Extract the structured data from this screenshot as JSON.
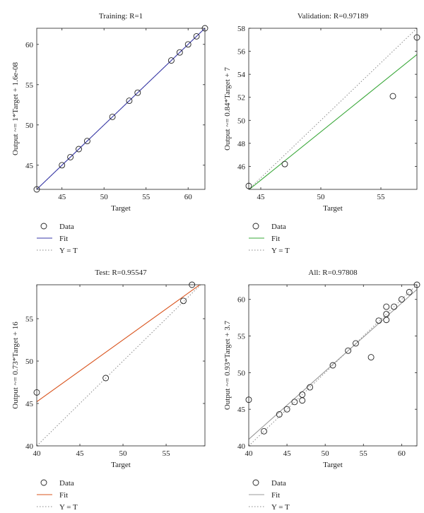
{
  "panels": [
    {
      "title": "Training: R=1",
      "xlabel": "Target",
      "ylabel": "Output ~= 1*Target + 1.6e-08",
      "fit_color": "#3a3aa8",
      "legend": {
        "data": "Data",
        "fit": "Fit",
        "yt": "Y = T"
      }
    },
    {
      "title": "Validation: R=0.97189",
      "xlabel": "Target",
      "ylabel": "Output ~= 0.84*Target + 7",
      "fit_color": "#3aa83a",
      "legend": {
        "data": "Data",
        "fit": "Fit",
        "yt": "Y = T"
      }
    },
    {
      "title": "Test: R=0.95547",
      "xlabel": "Target",
      "ylabel": "Output ~= 0.73*Target + 16",
      "fit_color": "#d9541e",
      "legend": {
        "data": "Data",
        "fit": "Fit",
        "yt": "Y = T"
      }
    },
    {
      "title": "All: R=0.97808",
      "xlabel": "Target",
      "ylabel": "Output ~= 0.93*Target + 3.7",
      "fit_color": "#999999",
      "legend": {
        "data": "Data",
        "fit": "Fit",
        "yt": "Y = T"
      }
    }
  ],
  "chart_data": [
    {
      "type": "scatter",
      "title": "Training: R=1",
      "xlabel": "Target",
      "ylabel": "Output ~= 1*Target + 1.6e-08",
      "xlim": [
        42,
        62
      ],
      "ylim": [
        42,
        62
      ],
      "xticks": [
        45,
        50,
        55,
        60
      ],
      "yticks": [
        45,
        50,
        55,
        60
      ],
      "fit": {
        "slope": 1,
        "intercept": 1.6e-08
      },
      "points": [
        [
          42,
          42
        ],
        [
          45,
          45
        ],
        [
          46,
          46
        ],
        [
          47,
          47
        ],
        [
          48,
          48
        ],
        [
          51,
          51
        ],
        [
          53,
          53
        ],
        [
          54,
          54
        ],
        [
          58,
          58
        ],
        [
          59,
          59
        ],
        [
          60,
          60
        ],
        [
          61,
          61
        ],
        [
          62,
          62
        ]
      ],
      "legend": [
        "Data",
        "Fit",
        "Y = T"
      ]
    },
    {
      "type": "scatter",
      "title": "Validation: R=0.97189",
      "xlabel": "Target",
      "ylabel": "Output ~= 0.84*Target + 7",
      "xlim": [
        44,
        58
      ],
      "ylim": [
        44,
        58
      ],
      "xticks": [
        45,
        50,
        55
      ],
      "yticks": [
        46,
        48,
        50,
        52,
        54,
        56,
        58
      ],
      "fit": {
        "slope": 0.84,
        "intercept": 7
      },
      "points": [
        [
          44,
          44.3
        ],
        [
          47,
          46.2
        ],
        [
          56,
          52.1
        ],
        [
          58,
          57.2
        ]
      ],
      "legend": [
        "Data",
        "Fit",
        "Y = T"
      ]
    },
    {
      "type": "scatter",
      "title": "Test: R=0.95547",
      "xlabel": "Target",
      "ylabel": "Output ~= 0.73*Target + 16",
      "xlim": [
        40,
        59.5
      ],
      "ylim": [
        40,
        59
      ],
      "xticks": [
        40,
        45,
        50,
        55
      ],
      "yticks": [
        40,
        45,
        50,
        55
      ],
      "fit": {
        "slope": 0.73,
        "intercept": 16
      },
      "points": [
        [
          40,
          46.3
        ],
        [
          48,
          48
        ],
        [
          57,
          57.1
        ],
        [
          58,
          59
        ]
      ],
      "legend": [
        "Data",
        "Fit",
        "Y = T"
      ]
    },
    {
      "type": "scatter",
      "title": "All: R=0.97808",
      "xlabel": "Target",
      "ylabel": "Output ~= 0.93*Target + 3.7",
      "xlim": [
        40,
        62
      ],
      "ylim": [
        40,
        62
      ],
      "xticks": [
        40,
        45,
        50,
        55,
        60
      ],
      "yticks": [
        40,
        45,
        50,
        55,
        60
      ],
      "fit": {
        "slope": 0.93,
        "intercept": 3.7
      },
      "points": [
        [
          40,
          46.3
        ],
        [
          42,
          42
        ],
        [
          44,
          44.3
        ],
        [
          45,
          45
        ],
        [
          46,
          46
        ],
        [
          47,
          46.2
        ],
        [
          47,
          47
        ],
        [
          48,
          48
        ],
        [
          51,
          51
        ],
        [
          53,
          53
        ],
        [
          54,
          54
        ],
        [
          56,
          52.1
        ],
        [
          57,
          57.1
        ],
        [
          58,
          57.2
        ],
        [
          58,
          58
        ],
        [
          58,
          59
        ],
        [
          59,
          59
        ],
        [
          60,
          60
        ],
        [
          61,
          61
        ],
        [
          62,
          62
        ]
      ],
      "legend": [
        "Data",
        "Fit",
        "Y = T"
      ]
    }
  ]
}
